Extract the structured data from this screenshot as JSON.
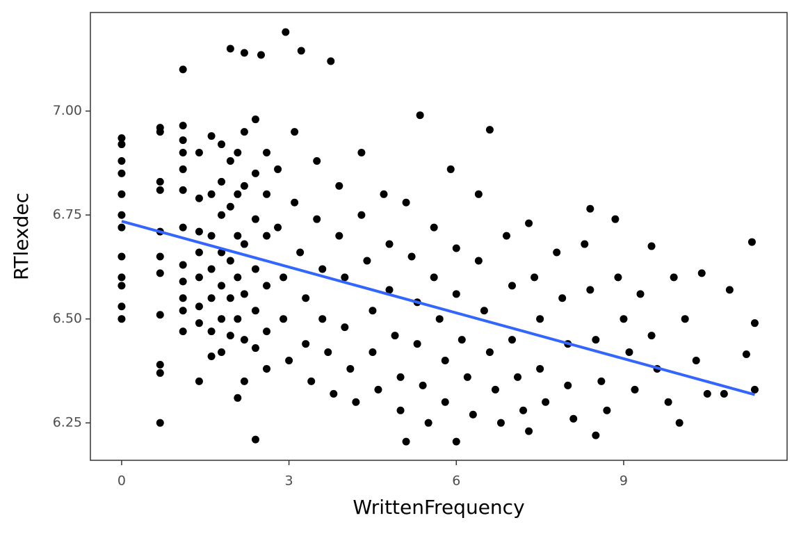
{
  "chart_data": {
    "type": "scatter",
    "x_label": "WrittenFrequency",
    "y_label": "RTlexdec",
    "xlim": [
      -0.56,
      11.93
    ],
    "ylim": [
      6.16,
      7.237
    ],
    "xticks": [
      0,
      3,
      6,
      9
    ],
    "yticks": [
      {
        "value": 6.25,
        "label": "6.25"
      },
      {
        "value": 6.5,
        "label": "6.50"
      },
      {
        "value": 6.75,
        "label": "6.75"
      },
      {
        "value": 7,
        "label": "7.00"
      }
    ],
    "grid": false,
    "series": [
      {
        "color": "#000000",
        "x": [
          0,
          0,
          0,
          0,
          0,
          0,
          0,
          0,
          0,
          0,
          0.69,
          0.69,
          0.69,
          0.69,
          0.69,
          0.69,
          0.69,
          0.69,
          0.69,
          1.1,
          1.1,
          1.1,
          1.1,
          1.1,
          1.1,
          1.1,
          1.1,
          1.1,
          1.1,
          1.39,
          1.39,
          1.39,
          1.39,
          1.39,
          1.39,
          1.39,
          1.39,
          1.61,
          1.61,
          1.61,
          1.61,
          1.61,
          1.61,
          1.61,
          1.79,
          1.79,
          1.79,
          1.79,
          1.79,
          1.79,
          1.79,
          1.95,
          1.95,
          1.95,
          1.95,
          1.95,
          2.08,
          2.08,
          2.08,
          2.08,
          2.08,
          2.08,
          2.2,
          2.2,
          2.2,
          2.2,
          2.2,
          2.2,
          2.4,
          2.4,
          2.4,
          2.4,
          2.4,
          2.4,
          2.6,
          2.6,
          2.6,
          2.6,
          2.6,
          2.6,
          2.8,
          2.8,
          2.9,
          2.9,
          3.0,
          3.1,
          3.1,
          3.2,
          3.3,
          3.3,
          3.4,
          3.5,
          3.5,
          3.6,
          3.6,
          3.7,
          3.8,
          3.9,
          3.9,
          4.0,
          4.0,
          4.1,
          4.2,
          4.3,
          4.3,
          4.4,
          4.5,
          4.5,
          4.6,
          4.7,
          4.8,
          4.8,
          4.9,
          5.0,
          5.0,
          5.1,
          5.2,
          5.3,
          5.3,
          5.4,
          5.5,
          5.6,
          5.6,
          5.7,
          5.8,
          5.8,
          5.9,
          6.0,
          6.0,
          6.1,
          6.2,
          6.3,
          6.4,
          6.4,
          6.5,
          6.6,
          6.7,
          6.8,
          6.9,
          7.0,
          7.0,
          7.1,
          7.2,
          7.3,
          7.4,
          7.5,
          7.5,
          7.6,
          7.8,
          7.9,
          8.0,
          8.0,
          8.1,
          8.3,
          8.4,
          8.5,
          8.6,
          8.7,
          8.9,
          9.0,
          9.1,
          9.2,
          9.3,
          9.5,
          9.6,
          9.8,
          9.9,
          10.1,
          10.3,
          10.5,
          2.94,
          1.95,
          2.2,
          2.5,
          3.22,
          3.75,
          1.1,
          5.35,
          6.6,
          11.3,
          11.35,
          11.35,
          5.1,
          6.0,
          2.4,
          0,
          0,
          0.69,
          0.69,
          1.1,
          10.4,
          10.9,
          8.4,
          8.85,
          9.5,
          10.0,
          8.5,
          11.2,
          10.8,
          7.3
        ],
        "values": [
          6.92,
          6.88,
          6.85,
          6.8,
          6.75,
          6.72,
          6.65,
          6.6,
          6.58,
          6.53,
          6.95,
          6.83,
          6.81,
          6.71,
          6.65,
          6.61,
          6.51,
          6.39,
          6.37,
          6.93,
          6.9,
          6.86,
          6.81,
          6.72,
          6.63,
          6.59,
          6.55,
          6.52,
          6.47,
          6.9,
          6.79,
          6.71,
          6.66,
          6.6,
          6.53,
          6.49,
          6.35,
          6.94,
          6.8,
          6.7,
          6.62,
          6.55,
          6.47,
          6.41,
          6.92,
          6.83,
          6.75,
          6.66,
          6.58,
          6.5,
          6.42,
          6.88,
          6.77,
          6.64,
          6.55,
          6.46,
          6.9,
          6.8,
          6.7,
          6.6,
          6.5,
          6.31,
          6.95,
          6.82,
          6.68,
          6.56,
          6.45,
          6.35,
          6.98,
          6.85,
          6.74,
          6.62,
          6.52,
          6.43,
          6.9,
          6.8,
          6.7,
          6.58,
          6.47,
          6.38,
          6.86,
          6.72,
          6.6,
          6.5,
          6.4,
          6.95,
          6.78,
          6.66,
          6.55,
          6.44,
          6.35,
          6.88,
          6.74,
          6.62,
          6.5,
          6.42,
          6.32,
          6.82,
          6.7,
          6.6,
          6.48,
          6.38,
          6.3,
          6.9,
          6.75,
          6.64,
          6.52,
          6.42,
          6.33,
          6.8,
          6.68,
          6.57,
          6.46,
          6.36,
          6.28,
          6.78,
          6.65,
          6.54,
          6.44,
          6.34,
          6.25,
          6.72,
          6.6,
          6.5,
          6.4,
          6.3,
          6.86,
          6.67,
          6.56,
          6.45,
          6.36,
          6.27,
          6.8,
          6.64,
          6.52,
          6.42,
          6.33,
          6.25,
          6.7,
          6.58,
          6.45,
          6.36,
          6.28,
          6.73,
          6.6,
          6.5,
          6.38,
          6.3,
          6.66,
          6.55,
          6.44,
          6.34,
          6.26,
          6.68,
          6.57,
          6.45,
          6.35,
          6.28,
          6.6,
          6.5,
          6.42,
          6.33,
          6.56,
          6.46,
          6.38,
          6.3,
          6.6,
          6.5,
          6.4,
          6.32,
          7.19,
          7.15,
          7.14,
          7.135,
          7.145,
          7.12,
          7.1,
          6.99,
          6.955,
          6.685,
          6.49,
          6.33,
          6.205,
          6.205,
          6.21,
          6.935,
          6.5,
          6.25,
          6.96,
          6.965,
          6.61,
          6.57,
          6.765,
          6.74,
          6.675,
          6.25,
          6.22,
          6.415,
          6.32,
          6.23
        ]
      },
      {
        "type": "line",
        "color": "#3366ff",
        "x": [
          0,
          11.35
        ],
        "values": [
          6.735,
          6.318
        ]
      }
    ]
  }
}
